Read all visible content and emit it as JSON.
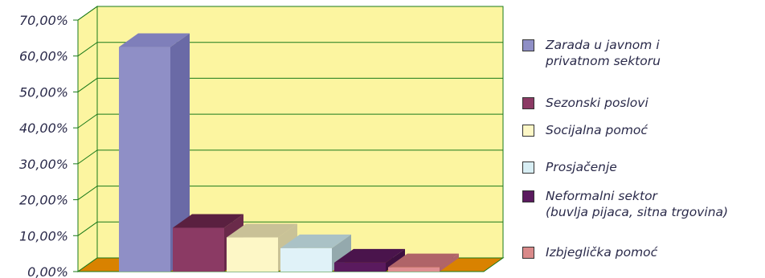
{
  "chart_data": {
    "type": "bar",
    "categories": [
      "Zarada u javnom i privatnom sektoru",
      "Sezonski poslovi",
      "Socijalna pomoć",
      "Prosjačenje",
      "Neformalni sektor (buvlja pijaca, sitna trgovina)",
      "Izbjeglička pomoć"
    ],
    "values": [
      62.5,
      12.2,
      9.5,
      6.5,
      2.5,
      1.2
    ],
    "ylim": [
      0,
      70
    ],
    "yticks": [
      "0,00%",
      "10,00%",
      "20,00%",
      "30,00%",
      "40,00%",
      "50,00%",
      "60,00%",
      "70,00%"
    ],
    "grid": true,
    "legend_position": "right",
    "title": "",
    "xlabel": "",
    "ylabel": ""
  },
  "legend": [
    {
      "lines": [
        "Zarada u javnom i",
        "privatnom sektoru"
      ],
      "color": "#8f8fc6"
    },
    {
      "lines": [
        "Sezonski poslovi"
      ],
      "color": "#8b3a64"
    },
    {
      "lines": [
        "Socijalna pomoć"
      ],
      "color": "#fdf7c6"
    },
    {
      "lines": [
        "Prosjačenje"
      ],
      "color": "#d8eef4"
    },
    {
      "lines": [
        "Neformalni sektor",
        "(buvlja pijaca, sitna trgovina)"
      ],
      "color": "#5a1a5e"
    },
    {
      "lines": [
        "Izbjeglička pomoć"
      ],
      "color": "#d98a8a"
    }
  ],
  "colors": {
    "wall": "#fcf5a0",
    "floor": "#d98200",
    "grid": "#1a7a1a",
    "bars": [
      {
        "front": "#8f8fc6",
        "side": "#6a6aa6",
        "top": "#7f7fba"
      },
      {
        "front": "#8b3a64",
        "side": "#6a2a4a",
        "top": "#5a2040"
      },
      {
        "front": "#fdf7c6",
        "side": "#c9c297",
        "top": "#c9c197"
      },
      {
        "front": "#e0f2f8",
        "side": "#94a9ad",
        "top": "#aac2c6"
      },
      {
        "front": "#5a1a5e",
        "side": "#3e1040",
        "top": "#4a144c"
      },
      {
        "front": "#e08e92",
        "side": "#b06468",
        "top": "#b06468"
      }
    ]
  }
}
